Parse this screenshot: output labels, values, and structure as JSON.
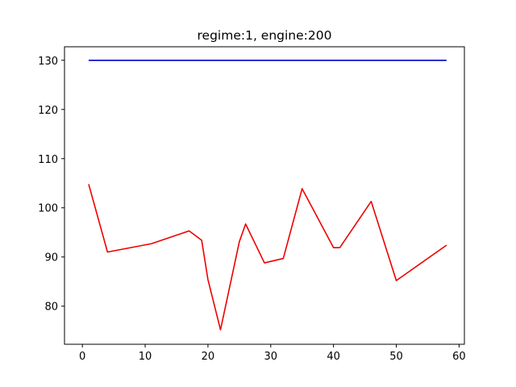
{
  "chart_data": {
    "type": "line",
    "title": "regime:1, engine:200",
    "xlabel": "",
    "ylabel": "",
    "xlim": [
      -2.85,
      60.85
    ],
    "ylim": [
      72.25,
      132.75
    ],
    "xticks": [
      0,
      10,
      20,
      30,
      40,
      50,
      60
    ],
    "yticks": [
      80,
      90,
      100,
      110,
      120,
      130
    ],
    "grid": false,
    "legend": "none",
    "series": [
      {
        "color": "#0000cc",
        "x": [
          1,
          58
        ],
        "y": [
          130,
          130
        ]
      },
      {
        "color": "#ee0000",
        "x": [
          1,
          4,
          11,
          17,
          19,
          20,
          22,
          25,
          26,
          29,
          32,
          35,
          40,
          41,
          46,
          50,
          58
        ],
        "y": [
          104.8,
          91.0,
          92.7,
          95.3,
          93.4,
          85.4,
          75.2,
          93.1,
          96.7,
          88.8,
          89.7,
          103.9,
          91.9,
          91.9,
          101.3,
          85.2,
          92.4
        ]
      }
    ]
  }
}
